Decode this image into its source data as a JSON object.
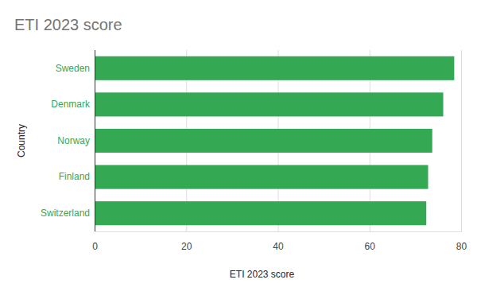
{
  "chart_data": {
    "type": "bar",
    "title": "ETI 2023 score",
    "xlabel": "ETI 2023 score",
    "ylabel": "Country",
    "categories": [
      "Sweden",
      "Denmark",
      "Norway",
      "Finland",
      "Switzerland"
    ],
    "values": [
      78.5,
      76.1,
      73.7,
      72.8,
      72.4
    ],
    "color": "#34a853",
    "orientation": "horizontal",
    "xlim": [
      0,
      80
    ],
    "xticks": [
      0,
      20,
      40,
      60,
      80
    ],
    "grid": true
  }
}
